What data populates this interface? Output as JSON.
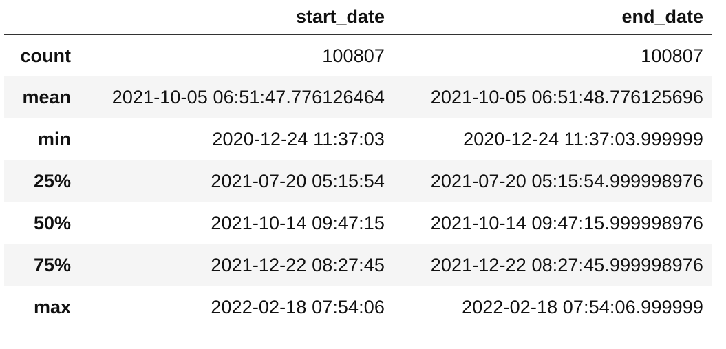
{
  "table": {
    "columns": [
      "",
      "start_date",
      "end_date"
    ],
    "rows": [
      {
        "index": "count",
        "start_date": "100807",
        "end_date": "100807"
      },
      {
        "index": "mean",
        "start_date": "2021-10-05 06:51:47.776126464",
        "end_date": "2021-10-05 06:51:48.776125696"
      },
      {
        "index": "min",
        "start_date": "2020-12-24 11:37:03",
        "end_date": "2020-12-24 11:37:03.999999"
      },
      {
        "index": "25%",
        "start_date": "2021-07-20 05:15:54",
        "end_date": "2021-07-20 05:15:54.999998976"
      },
      {
        "index": "50%",
        "start_date": "2021-10-14 09:47:15",
        "end_date": "2021-10-14 09:47:15.999998976"
      },
      {
        "index": "75%",
        "start_date": "2021-12-22 08:27:45",
        "end_date": "2021-12-22 08:27:45.999998976"
      },
      {
        "index": "max",
        "start_date": "2022-02-18 07:54:06",
        "end_date": "2022-02-18 07:54:06.999999"
      }
    ]
  }
}
